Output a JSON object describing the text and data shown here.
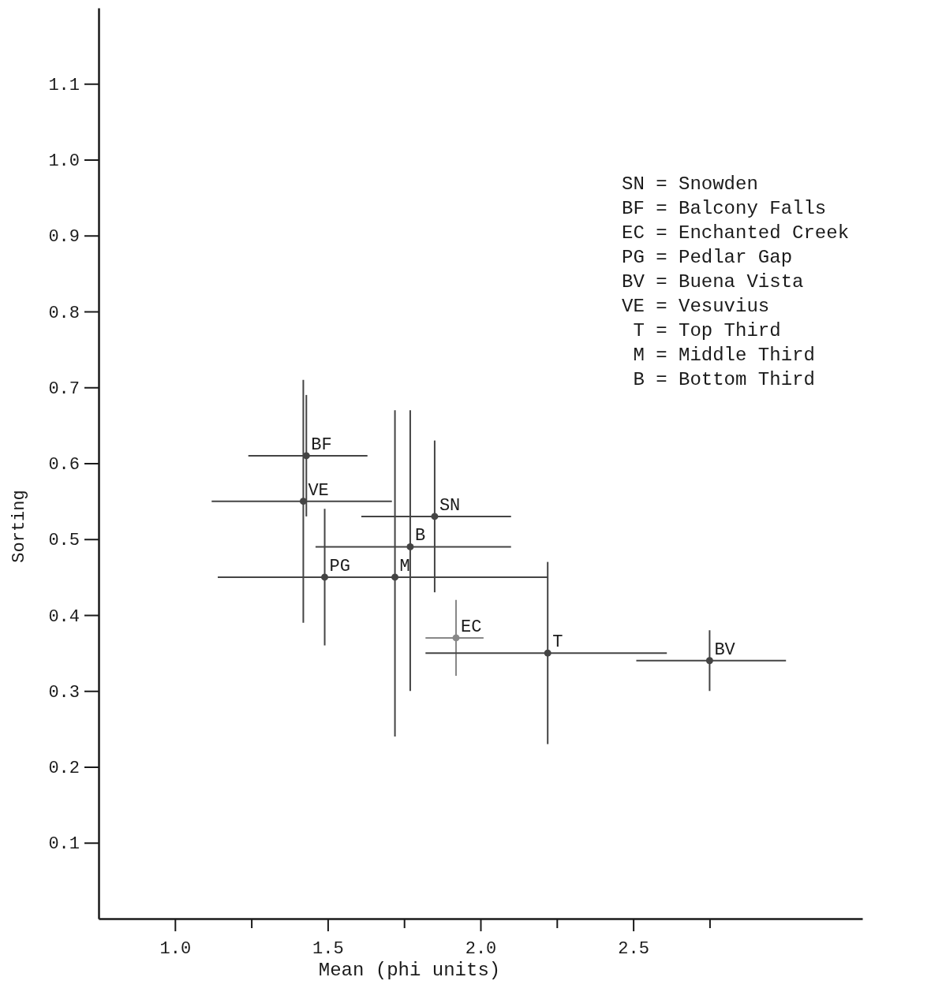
{
  "chart_data": {
    "type": "scatter",
    "xlabel": "Mean (phi units)",
    "ylabel": "Sorting",
    "xlim": [
      0.75,
      3.25
    ],
    "ylim": [
      0,
      1.2
    ],
    "xticks": [
      {
        "value": 1,
        "label": "1.0"
      },
      {
        "value": 1.25,
        "label": null
      },
      1.5,
      {
        "value": 1.75,
        "label": null
      },
      {
        "value": 2,
        "label": "2.0"
      },
      {
        "value": 2.25,
        "label": null
      },
      2.5,
      {
        "value": 2.75,
        "label": null
      }
    ],
    "yticks": [
      0.1,
      0.2,
      0.3,
      0.4,
      0.5,
      0.6,
      0.7,
      0.8,
      0.9,
      {
        "value": 1,
        "label": "1.0"
      },
      1.1
    ],
    "grid": false,
    "marker": "circle",
    "series": [
      {
        "colors": [
          "#444444",
          "#444444",
          "#444444",
          "#444444",
          "#444444",
          "#444444",
          "#888888",
          "#444444",
          "#444444"
        ],
        "x": [
          1.43,
          1.42,
          1.49,
          1.72,
          1.77,
          1.85,
          1.92,
          2.22,
          2.75
        ],
        "values": [
          0.61,
          0.55,
          0.45,
          0.45,
          0.49,
          0.53,
          0.37,
          0.35,
          0.34
        ],
        "xerrors": [
          [
            1.24,
            1.63
          ],
          [
            1.12,
            1.71
          ],
          [
            1.14,
            1.84
          ],
          [
            1.22,
            2.22
          ],
          [
            1.46,
            2.1
          ],
          [
            1.61,
            2.1
          ],
          [
            1.82,
            2.01
          ],
          [
            1.82,
            2.61
          ],
          [
            2.51,
            3.0
          ]
        ],
        "errors": [
          [
            0.53,
            0.69
          ],
          [
            0.39,
            0.71
          ],
          [
            0.36,
            0.54
          ],
          [
            0.24,
            0.67
          ],
          [
            0.3,
            0.67
          ],
          [
            0.43,
            0.63
          ],
          [
            0.32,
            0.42
          ],
          [
            0.23,
            0.47
          ],
          [
            0.3,
            0.38
          ]
        ]
      }
    ],
    "annotations": [
      {
        "text": "BF",
        "x": 1.43,
        "y": 0.61
      },
      {
        "text": "VE",
        "x": 1.42,
        "y": 0.55
      },
      {
        "text": "PG",
        "x": 1.49,
        "y": 0.45
      },
      {
        "text": "M",
        "x": 1.72,
        "y": 0.45
      },
      {
        "text": "B",
        "x": 1.77,
        "y": 0.49
      },
      {
        "text": "SN",
        "x": 1.85,
        "y": 0.53
      },
      {
        "text": "EC",
        "x": 1.92,
        "y": 0.37
      },
      {
        "text": "T",
        "x": 2.22,
        "y": 0.35
      },
      {
        "text": "BV",
        "x": 2.75,
        "y": 0.34
      },
      "SN = Snowden",
      "BF = Balcony Falls",
      "EC = Enchanted Creek",
      "PG = Pedlar Gap",
      "BV = Buena Vista",
      "VE = Vesuvius",
      " T = Top Third",
      " M = Middle Third",
      " B = Bottom Third"
    ]
  }
}
